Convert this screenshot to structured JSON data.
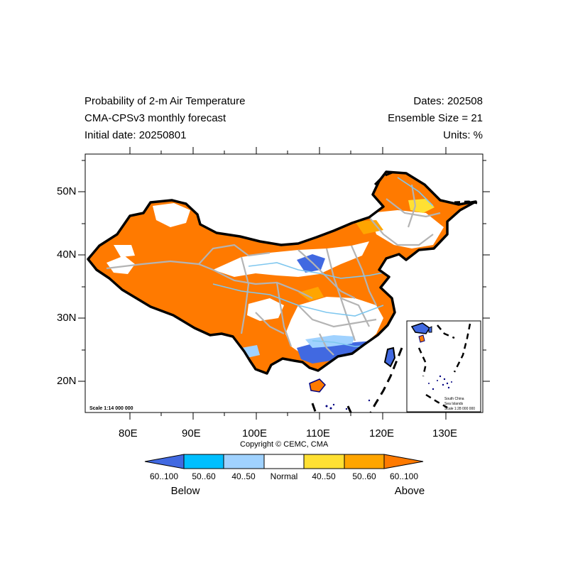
{
  "header": {
    "title_left_1": "Probability of 2-m Air Temperature",
    "title_left_2": "CMA-CPSv3 monthly forecast",
    "title_left_3": "Initial date: 20250801",
    "title_right_1": "Dates: 202508",
    "title_right_2": "Ensemble Size = 21",
    "title_right_3": "Units: %"
  },
  "axes": {
    "lat_labels": [
      "50N",
      "40N",
      "30N",
      "20N"
    ],
    "lon_labels": [
      "80E",
      "90E",
      "100E",
      "110E",
      "120E",
      "130E"
    ]
  },
  "map": {
    "scale_main": "Scale 1:14 000 000",
    "inset_line_1": "South China",
    "inset_line_2": "Sea Islands",
    "inset_line_3": "Scale 1:28 000 000"
  },
  "copyright": "Copyright © CEMC, CMA",
  "colorbar": {
    "labels": [
      "60..100",
      "50..60",
      "40..50",
      "Normal",
      "40..50",
      "50..60",
      "60..100"
    ],
    "below": "Below",
    "above": "Above",
    "colors": [
      "#4169E1",
      "#00BFFF",
      "#A0D2FF",
      "#FFFFFF",
      "#FFE033",
      "#FFA500",
      "#FF7A00"
    ]
  }
}
